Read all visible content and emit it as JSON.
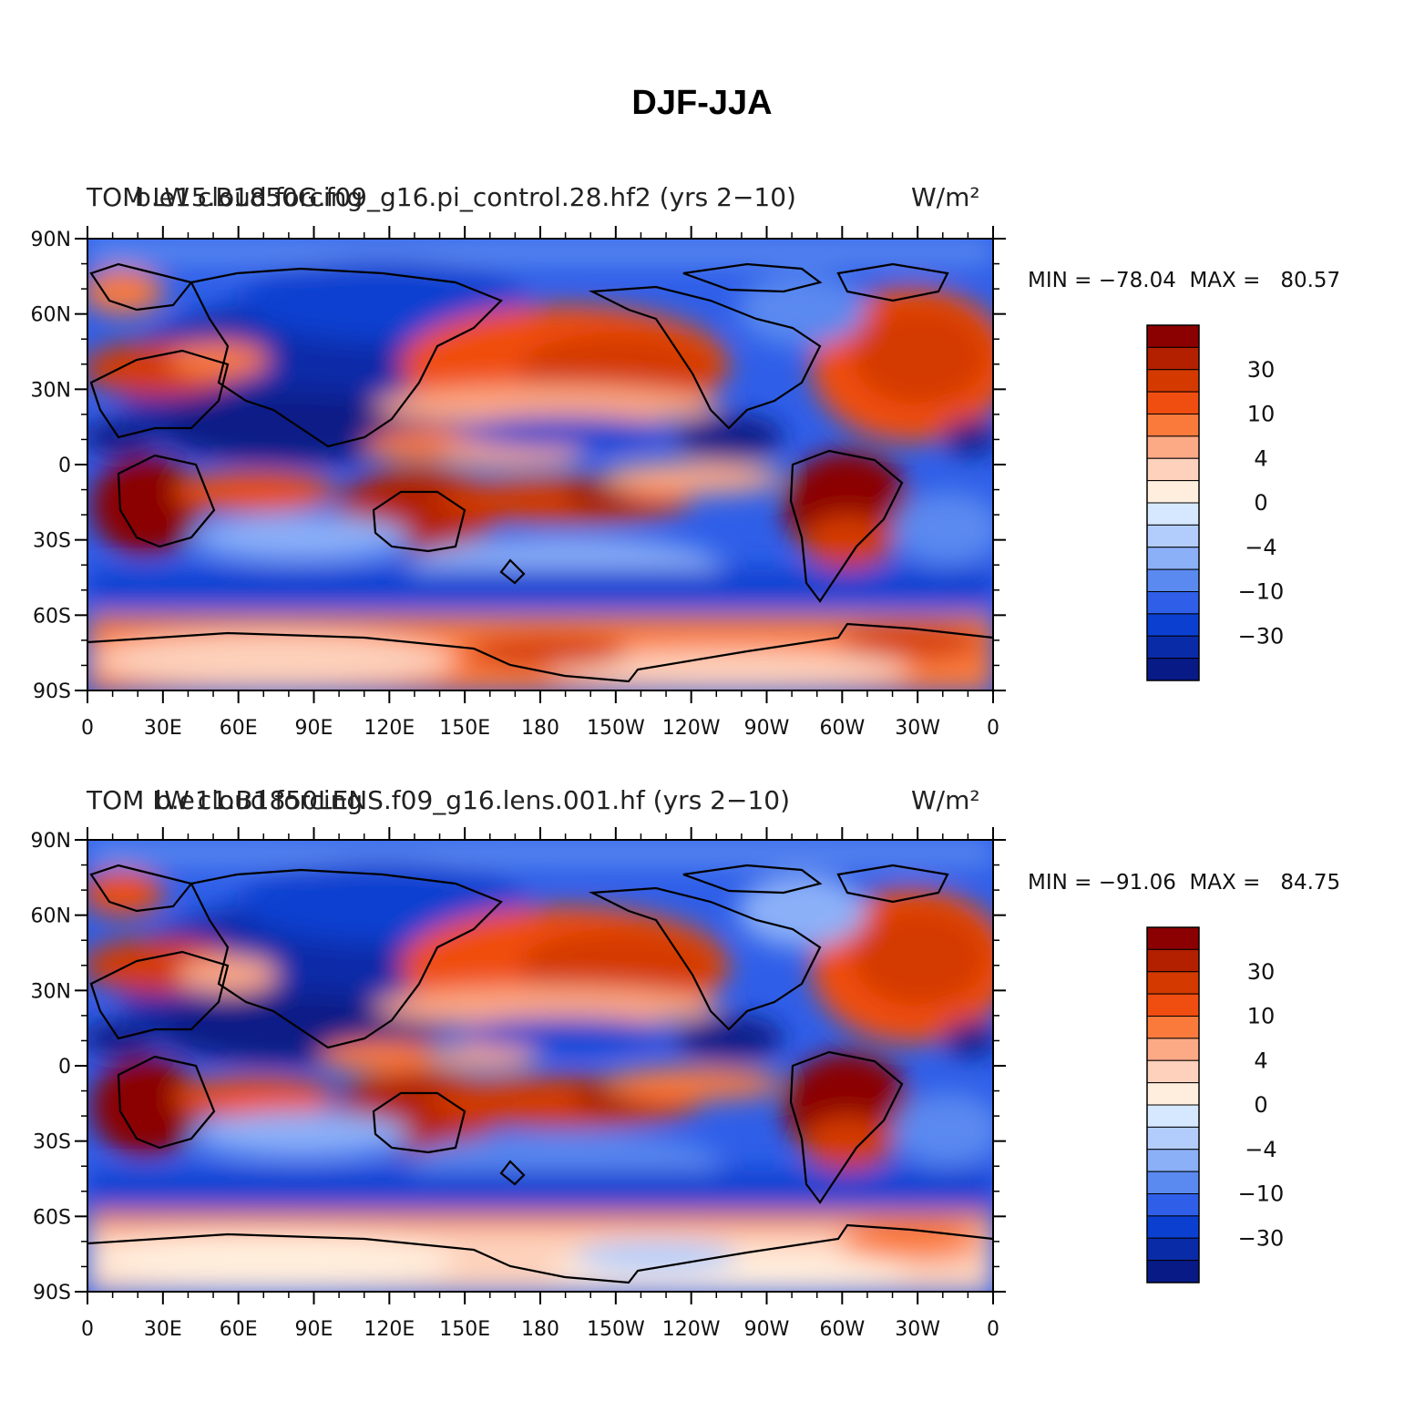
{
  "figure_title": "DJF-JJA",
  "colorbar": {
    "colors": [
      "#8b0000",
      "#b22000",
      "#d43a00",
      "#f04d10",
      "#fa7a3c",
      "#fca985",
      "#fdd1bc",
      "#ffeedd",
      "#d6e8ff",
      "#b2cdfc",
      "#8cb0f8",
      "#5a89f0",
      "#2f5fe8",
      "#0b3fd0",
      "#0a2ba8",
      "#071a86"
    ],
    "labels": [
      "30",
      "10",
      "4",
      "0",
      "−4",
      "−10",
      "−30"
    ]
  },
  "map_axes": {
    "y_ticks": [
      "90N",
      "60N",
      "30N",
      "0",
      "30S",
      "60S",
      "90S"
    ],
    "x_ticks": [
      "0",
      "30E",
      "60E",
      "90E",
      "120E",
      "150E",
      "180",
      "150W",
      "120W",
      "90W",
      "60W",
      "30W",
      "0"
    ]
  },
  "panels": [
    {
      "id": "top",
      "overlap_label_a": "TOM LW cloud forcing",
      "overlap_label_b": "b.e15.B1850G.f09_g16.pi_control.28.hf2 (yrs 2−10)",
      "units": "W/m²",
      "stats": "MIN = −78.04  MAX =   80.57"
    },
    {
      "id": "bottom",
      "overlap_label_a": "TOM LW cloud forcing",
      "overlap_label_b": "b.e11.B1850LENS.f09_g16.lens.001.hf (yrs 2−10)",
      "units": "W/m²",
      "stats": "MIN = −91.06  MAX =   84.75"
    }
  ]
}
